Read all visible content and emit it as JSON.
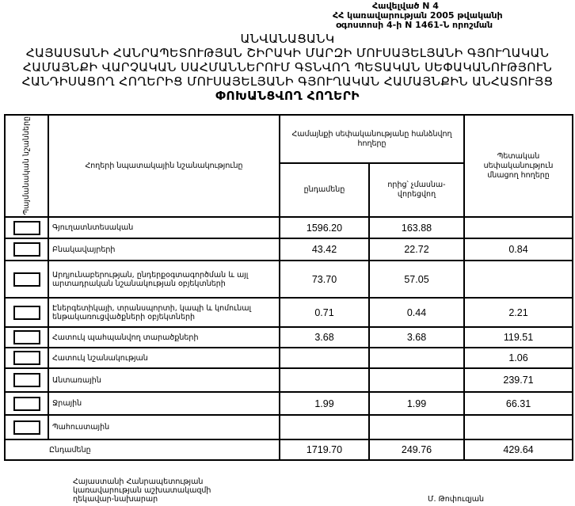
{
  "annex": {
    "line1": "Հավելված N 4",
    "line2": "ՀՀ կառավարության 2005 թվականի",
    "line3": "օգոստոսի 4-ի N 1461-Ն որոշման"
  },
  "title": {
    "line1": "ԱՆՎԱՆԱՑԱՆԿ",
    "line2": "ՀԱՅԱՍՏԱՆԻ ՀԱՆՐԱՊԵՏՈՒԹՅԱՆ ՇԻՐԱԿԻ ՄԱՐԶԻ ՄՈՒՍԱՅԵԼՅԱՆԻ ԳՅՈՒՂԱԿԱՆ",
    "line3": "ՀԱՄԱՅՆՔԻ ՎԱՐՉԱԿԱՆ ՍԱՀՄԱՆՆԵՐՈՒՄ ԳՏՆՎՈՂ ՊԵՏԱԿԱՆ ՍԵՓԱԿԱՆՈՒԹՅՈՒՆ",
    "line4": "ՀԱՆԴԻՍԱՑՈՂ ՀՈՂԵՐԻՑ ՄՈՒՍԱՅԵԼՅԱՆԻ ԳՅՈՒՂԱԿԱՆ ՀԱՄԱՅՆՔԻՆ ԱՆՀԱՏՈՒՅՑ",
    "line5": "ՓՈԽԱՆՑՎՈՂ ՀՈՂԵՐԻ"
  },
  "table": {
    "headers": {
      "symbols": "Պայմանական նշանները",
      "purpose": "Հողերի նպատակային նշանակությունը",
      "community": "Համայնքի սեփականությանը հանձնվող հողերը",
      "total": "ընդամենը",
      "of_which": "որից՝ չմասնա-վորեցվող",
      "state": "Պետական սեփականություն մնացող հողերը"
    },
    "rows": [
      {
        "name": "Գյուղատնտեսական",
        "total": "1596.20",
        "of_which": "163.88",
        "state": ""
      },
      {
        "name": "Բնակավայրերի",
        "total": "43.42",
        "of_which": "22.72",
        "state": "0.84"
      },
      {
        "name": "Արդյունաբերության, ընդերքօգտագործման և այլ արտադրական նշանակության օբյեկտների",
        "total": "73.70",
        "of_which": "57.05",
        "state": ""
      },
      {
        "name": "Էներգետիկայի, տրանսպորտի, կապի և կոմունալ ենթակառուցվածքների օբյեկտների",
        "total": "0.71",
        "of_which": "0.44",
        "state": "2.21"
      },
      {
        "name": "Հատուկ պահպանվող տարածքների",
        "total": "3.68",
        "of_which": "3.68",
        "state": "119.51"
      },
      {
        "name": "Հատուկ նշանակության",
        "total": "",
        "of_which": "",
        "state": "1.06"
      },
      {
        "name": "Անտառային",
        "total": "",
        "of_which": "",
        "state": "239.71"
      },
      {
        "name": "Ջրային",
        "total": "1.99",
        "of_which": "1.99",
        "state": "66.31"
      },
      {
        "name": "Պահուստային",
        "total": "",
        "of_which": "",
        "state": ""
      }
    ],
    "total_row": {
      "name": "Ընդամենը",
      "total": "1719.70",
      "of_which": "249.76",
      "state": "429.64"
    }
  },
  "footer": {
    "position_line1": "Հայաստանի Հանրապետության",
    "position_line2": "կառավարության աշխատակազմի",
    "position_line3": "ղեկավար-նախարար",
    "signatory": "Մ. Թոփուզյան"
  }
}
